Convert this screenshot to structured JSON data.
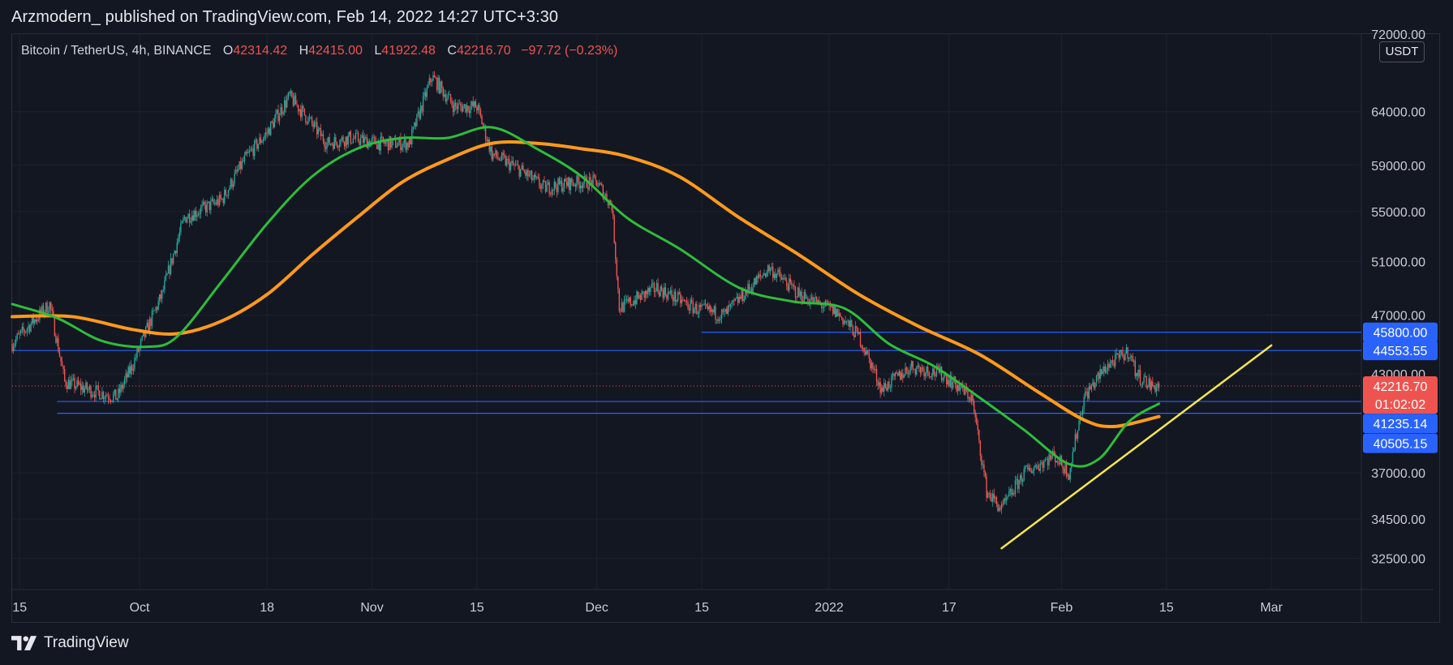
{
  "caption": "Arzmodern_ published on TradingView.com, Feb 14, 2022 14:27 UTC+3:30",
  "legend": {
    "symbol": "Bitcoin / TetherUS, 4h, BINANCE",
    "open_label": "O",
    "open": "42314.42",
    "high_label": "H",
    "high": "42415.00",
    "low_label": "L",
    "low": "41922.48",
    "close_label": "C",
    "close": "42216.70",
    "change": "−97.72 (−0.23%)"
  },
  "currency_button": "USDT",
  "brand": "TradingView",
  "colors": {
    "background": "#131722",
    "bull": "#26a69a",
    "bear": "#ef5350",
    "ma_fast": "#2ebd3c",
    "ma_slow": "#ff9a1a",
    "trendline": "#f5e94a",
    "level_line": "#2962ff"
  },
  "chart_data": {
    "type": "candlestick",
    "y_scale": "log",
    "ylim": [
      31000,
      72000
    ],
    "y_ticks": [
      72000,
      64000,
      59000,
      55000,
      51000,
      47000,
      43000,
      37000,
      34500,
      32500
    ],
    "y_tick_labels": [
      "72000.00",
      "64000.00",
      "59000.00",
      "55000.00",
      "51000.00",
      "47000.00",
      "43000.00",
      "37000.00",
      "34500.00",
      "32500.00"
    ],
    "x_ticks": [
      "15",
      "Oct",
      "18",
      "Nov",
      "15",
      "Dec",
      "15",
      "2022",
      "17",
      "Feb",
      "15",
      "Mar"
    ],
    "x_tick_dates": [
      "2021-09-15",
      "2021-10-01",
      "2021-10-18",
      "2021-11-01",
      "2021-11-15",
      "2021-12-01",
      "2021-12-15",
      "2022-01-01",
      "2022-01-17",
      "2022-02-01",
      "2022-02-15",
      "2022-03-01"
    ],
    "x_range": [
      "2021-09-14",
      "2022-03-13"
    ],
    "price_path": [
      [
        "2021-09-14",
        45000
      ],
      [
        "2021-09-19",
        47800
      ],
      [
        "2021-09-21",
        42500
      ],
      [
        "2021-09-24",
        42000
      ],
      [
        "2021-09-28",
        41500
      ],
      [
        "2021-09-30",
        43500
      ],
      [
        "2021-10-04",
        48500
      ],
      [
        "2021-10-07",
        54500
      ],
      [
        "2021-10-12",
        56000
      ],
      [
        "2021-10-15",
        59500
      ],
      [
        "2021-10-18",
        62000
      ],
      [
        "2021-10-21",
        65500
      ],
      [
        "2021-10-26",
        61000
      ],
      [
        "2021-10-29",
        61500
      ],
      [
        "2021-11-02",
        61000
      ],
      [
        "2021-11-06",
        61000
      ],
      [
        "2021-11-09",
        67500
      ],
      [
        "2021-11-12",
        64500
      ],
      [
        "2021-11-15",
        64500
      ],
      [
        "2021-11-17",
        60000
      ],
      [
        "2021-11-21",
        58500
      ],
      [
        "2021-11-24",
        57000
      ],
      [
        "2021-11-28",
        57500
      ],
      [
        "2021-12-01",
        57500
      ],
      [
        "2021-12-03",
        55500
      ],
      [
        "2021-12-04",
        47500
      ],
      [
        "2021-12-09",
        49000
      ],
      [
        "2021-12-14",
        47500
      ],
      [
        "2021-12-18",
        47000
      ],
      [
        "2021-12-24",
        50500
      ],
      [
        "2021-12-28",
        48500
      ],
      [
        "2022-01-02",
        47200
      ],
      [
        "2022-01-05",
        45500
      ],
      [
        "2022-01-08",
        42000
      ],
      [
        "2022-01-12",
        43500
      ],
      [
        "2022-01-16",
        43000
      ],
      [
        "2022-01-20",
        41500
      ],
      [
        "2022-01-22",
        36000
      ],
      [
        "2022-01-24",
        35000
      ],
      [
        "2022-01-27",
        37000
      ],
      [
        "2022-01-31",
        38000
      ],
      [
        "2022-02-02",
        37000
      ],
      [
        "2022-02-04",
        41500
      ],
      [
        "2022-02-07",
        43500
      ],
      [
        "2022-02-10",
        44500
      ],
      [
        "2022-02-11",
        43000
      ],
      [
        "2022-02-13",
        42200
      ],
      [
        "2022-02-14",
        42216.7
      ]
    ],
    "ma_fast_path": [
      [
        "2021-09-14",
        47800
      ],
      [
        "2021-09-20",
        46800
      ],
      [
        "2021-09-26",
        45200
      ],
      [
        "2021-10-02",
        44800
      ],
      [
        "2021-10-06",
        45500
      ],
      [
        "2021-10-12",
        49500
      ],
      [
        "2021-10-18",
        54000
      ],
      [
        "2021-10-24",
        58000
      ],
      [
        "2021-10-30",
        60500
      ],
      [
        "2021-11-05",
        61500
      ],
      [
        "2021-11-11",
        61500
      ],
      [
        "2021-11-17",
        62500
      ],
      [
        "2021-11-23",
        60500
      ],
      [
        "2021-11-29",
        58000
      ],
      [
        "2021-12-05",
        54500
      ],
      [
        "2021-12-12",
        52000
      ],
      [
        "2021-12-20",
        49000
      ],
      [
        "2021-12-27",
        48000
      ],
      [
        "2022-01-03",
        47500
      ],
      [
        "2022-01-09",
        45000
      ],
      [
        "2022-01-15",
        43500
      ],
      [
        "2022-01-21",
        41500
      ],
      [
        "2022-01-27",
        39500
      ],
      [
        "2022-02-02",
        37500
      ],
      [
        "2022-02-06",
        37800
      ],
      [
        "2022-02-10",
        40000
      ],
      [
        "2022-02-14",
        41100
      ]
    ],
    "ma_slow_path": [
      [
        "2021-09-14",
        46900
      ],
      [
        "2021-09-22",
        46900
      ],
      [
        "2021-09-30",
        46000
      ],
      [
        "2021-10-06",
        45700
      ],
      [
        "2021-10-12",
        46600
      ],
      [
        "2021-10-18",
        48500
      ],
      [
        "2021-10-24",
        51500
      ],
      [
        "2021-10-30",
        54500
      ],
      [
        "2021-11-05",
        57500
      ],
      [
        "2021-11-11",
        59500
      ],
      [
        "2021-11-17",
        61000
      ],
      [
        "2021-11-23",
        61000
      ],
      [
        "2021-11-29",
        60500
      ],
      [
        "2021-12-05",
        59800
      ],
      [
        "2021-12-12",
        58000
      ],
      [
        "2021-12-20",
        54500
      ],
      [
        "2021-12-28",
        51500
      ],
      [
        "2022-01-05",
        48500
      ],
      [
        "2022-01-13",
        46200
      ],
      [
        "2022-01-21",
        44300
      ],
      [
        "2022-01-29",
        41800
      ],
      [
        "2022-02-04",
        40100
      ],
      [
        "2022-02-08",
        39700
      ],
      [
        "2022-02-14",
        40300
      ]
    ],
    "trendline": [
      [
        "2022-01-24",
        33000
      ],
      [
        "2022-03-01",
        44900
      ]
    ],
    "horizontal_levels": [
      {
        "price": 45800,
        "from": "2021-12-15",
        "label": "45800.00"
      },
      {
        "price": 44553.55,
        "from": "2021-09-14",
        "label": "44553.55"
      },
      {
        "price": 41235.14,
        "from": "2021-09-20",
        "label": "41235.14"
      },
      {
        "price": 40505.15,
        "from": "2021-09-20",
        "label": "40505.15"
      }
    ],
    "last_price": {
      "price": 42216.7,
      "label": "42216.70",
      "countdown": "01:02:02"
    }
  }
}
